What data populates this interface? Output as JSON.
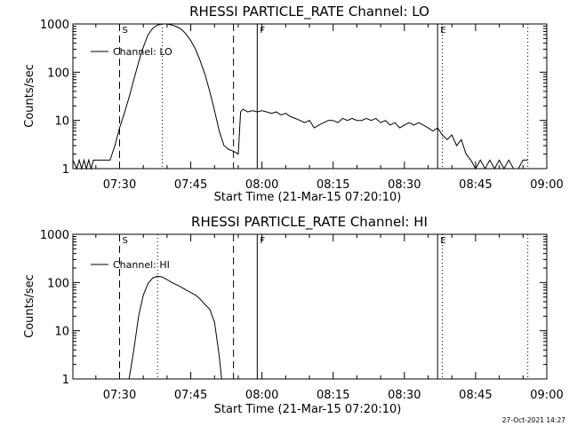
{
  "footer": {
    "timestamp": "27-Oct-2021 14:27"
  },
  "chart_data": [
    {
      "type": "line",
      "title": "RHESSI PARTICLE_RATE Channel: LO",
      "xlabel": "Start Time (21-Mar-15 07:20:10)",
      "ylabel": "Counts/sec",
      "x_ticks": [
        "07:30",
        "07:45",
        "08:00",
        "08:15",
        "08:30",
        "08:45",
        "09:00"
      ],
      "y_ticks": [
        "1",
        "10",
        "100",
        "1000"
      ],
      "x_range": [
        "07:20:10",
        "09:00:00"
      ],
      "ylim": [
        1,
        1000
      ],
      "y_scale": "log",
      "grid": false,
      "legend": {
        "position": "top-left",
        "entries": [
          "Channel: LO"
        ]
      },
      "markers": [
        {
          "label": "S",
          "time": "07:30",
          "style": "dashed"
        },
        {
          "label": "",
          "time": "07:39",
          "style": "dotted"
        },
        {
          "label": "",
          "time": "07:54",
          "style": "dashed"
        },
        {
          "label": "F",
          "time": "07:59",
          "style": "solid"
        },
        {
          "label": "E",
          "time": "08:37",
          "style": "solid"
        },
        {
          "label": "",
          "time": "08:38",
          "style": "dotted"
        },
        {
          "label": "",
          "time": "08:56",
          "style": "dotted"
        }
      ],
      "series": [
        {
          "name": "Channel: LO",
          "points": [
            [
              "07:20:10",
              1.5
            ],
            [
              "07:21",
              1.0
            ],
            [
              "07:21:30",
              1.5
            ],
            [
              "07:22",
              1.0
            ],
            [
              "07:22:30",
              1.5
            ],
            [
              "07:23",
              1.0
            ],
            [
              "07:23:30",
              1.5
            ],
            [
              "07:24",
              1.0
            ],
            [
              "07:24:30",
              1.5
            ],
            [
              "07:25",
              1.5
            ],
            [
              "07:27",
              1.5
            ],
            [
              "07:28",
              1.5
            ],
            [
              "07:29",
              3.0
            ],
            [
              "07:30",
              7.0
            ],
            [
              "07:31",
              14
            ],
            [
              "07:32",
              30
            ],
            [
              "07:33",
              70
            ],
            [
              "07:34",
              160
            ],
            [
              "07:35",
              330
            ],
            [
              "07:36",
              600
            ],
            [
              "07:37",
              820
            ],
            [
              "07:38",
              950
            ],
            [
              "07:39",
              1000
            ],
            [
              "07:40",
              1000
            ],
            [
              "07:41",
              950
            ],
            [
              "07:42",
              880
            ],
            [
              "07:43",
              780
            ],
            [
              "07:44",
              620
            ],
            [
              "07:45",
              450
            ],
            [
              "07:46",
              300
            ],
            [
              "07:47",
              170
            ],
            [
              "07:48",
              90
            ],
            [
              "07:49",
              40
            ],
            [
              "07:50",
              16
            ],
            [
              "07:51",
              6
            ],
            [
              "07:52",
              3
            ],
            [
              "07:53",
              2.5
            ],
            [
              "07:54",
              2.3
            ],
            [
              "07:55",
              2.0
            ],
            [
              "07:55:30",
              15
            ],
            [
              "07:56",
              17
            ],
            [
              "07:57",
              15
            ],
            [
              "07:58",
              16
            ],
            [
              "07:59",
              15
            ],
            [
              "08:00",
              16
            ],
            [
              "08:01",
              15
            ],
            [
              "08:02",
              14
            ],
            [
              "08:03",
              15
            ],
            [
              "08:04",
              13
            ],
            [
              "08:05",
              14
            ],
            [
              "08:06",
              12
            ],
            [
              "08:07",
              11
            ],
            [
              "08:08",
              10
            ],
            [
              "08:09",
              9
            ],
            [
              "08:10",
              10
            ],
            [
              "08:11",
              7
            ],
            [
              "08:12",
              8
            ],
            [
              "08:13",
              9
            ],
            [
              "08:14",
              10
            ],
            [
              "08:15",
              10
            ],
            [
              "08:16",
              9
            ],
            [
              "08:17",
              11
            ],
            [
              "08:18",
              10
            ],
            [
              "08:19",
              11
            ],
            [
              "08:20",
              10
            ],
            [
              "08:21",
              10
            ],
            [
              "08:22",
              11
            ],
            [
              "08:23",
              10
            ],
            [
              "08:24",
              11
            ],
            [
              "08:25",
              9
            ],
            [
              "08:26",
              10
            ],
            [
              "08:27",
              8
            ],
            [
              "08:28",
              9
            ],
            [
              "08:29",
              7
            ],
            [
              "08:30",
              8
            ],
            [
              "08:31",
              9
            ],
            [
              "08:32",
              8
            ],
            [
              "08:33",
              9
            ],
            [
              "08:34",
              8
            ],
            [
              "08:35",
              7
            ],
            [
              "08:36",
              6
            ],
            [
              "08:37",
              7
            ],
            [
              "08:38",
              5
            ],
            [
              "08:39",
              4
            ],
            [
              "08:40",
              5
            ],
            [
              "08:41",
              3
            ],
            [
              "08:42",
              4
            ],
            [
              "08:43",
              2
            ],
            [
              "08:44",
              1.5
            ],
            [
              "08:45",
              1.0
            ],
            [
              "08:46",
              1.5
            ],
            [
              "08:47",
              1.0
            ],
            [
              "08:48",
              1.5
            ],
            [
              "08:49",
              1.0
            ],
            [
              "08:50",
              1.5
            ],
            [
              "08:51",
              1.0
            ],
            [
              "08:52",
              1.5
            ],
            [
              "08:53",
              1.0
            ],
            [
              "08:54",
              1.0
            ],
            [
              "08:55",
              1.5
            ],
            [
              "08:56",
              1.5
            ]
          ]
        }
      ]
    },
    {
      "type": "line",
      "title": "RHESSI PARTICLE_RATE Channel: HI",
      "xlabel": "Start Time (21-Mar-15 07:20:10)",
      "ylabel": "Counts/sec",
      "x_ticks": [
        "07:30",
        "07:45",
        "08:00",
        "08:15",
        "08:30",
        "08:45",
        "09:00"
      ],
      "y_ticks": [
        "1",
        "10",
        "100",
        "1000"
      ],
      "x_range": [
        "07:20:10",
        "09:00:00"
      ],
      "ylim": [
        1,
        1000
      ],
      "y_scale": "log",
      "grid": false,
      "legend": {
        "position": "top-left",
        "entries": [
          "Channel: HI"
        ]
      },
      "markers": [
        {
          "label": "S",
          "time": "07:30",
          "style": "dashed"
        },
        {
          "label": "",
          "time": "07:38",
          "style": "dotted"
        },
        {
          "label": "",
          "time": "07:54",
          "style": "dashed"
        },
        {
          "label": "F",
          "time": "07:59",
          "style": "solid"
        },
        {
          "label": "E",
          "time": "08:37",
          "style": "solid"
        },
        {
          "label": "",
          "time": "08:38",
          "style": "dotted"
        },
        {
          "label": "",
          "time": "08:56",
          "style": "dotted"
        }
      ],
      "series": [
        {
          "name": "Channel: HI",
          "points": [
            [
              "07:32",
              1.0
            ],
            [
              "07:33",
              4
            ],
            [
              "07:34",
              20
            ],
            [
              "07:35",
              55
            ],
            [
              "07:36",
              95
            ],
            [
              "07:37",
              125
            ],
            [
              "07:38",
              135
            ],
            [
              "07:39",
              130
            ],
            [
              "07:40",
              115
            ],
            [
              "07:41",
              100
            ],
            [
              "07:42",
              90
            ],
            [
              "07:43",
              80
            ],
            [
              "07:44",
              70
            ],
            [
              "07:45",
              62
            ],
            [
              "07:46",
              55
            ],
            [
              "07:47",
              45
            ],
            [
              "07:48",
              35
            ],
            [
              "07:49",
              28
            ],
            [
              "07:50",
              15
            ],
            [
              "07:51",
              3
            ],
            [
              "07:51:30",
              1.0
            ]
          ]
        }
      ]
    }
  ]
}
